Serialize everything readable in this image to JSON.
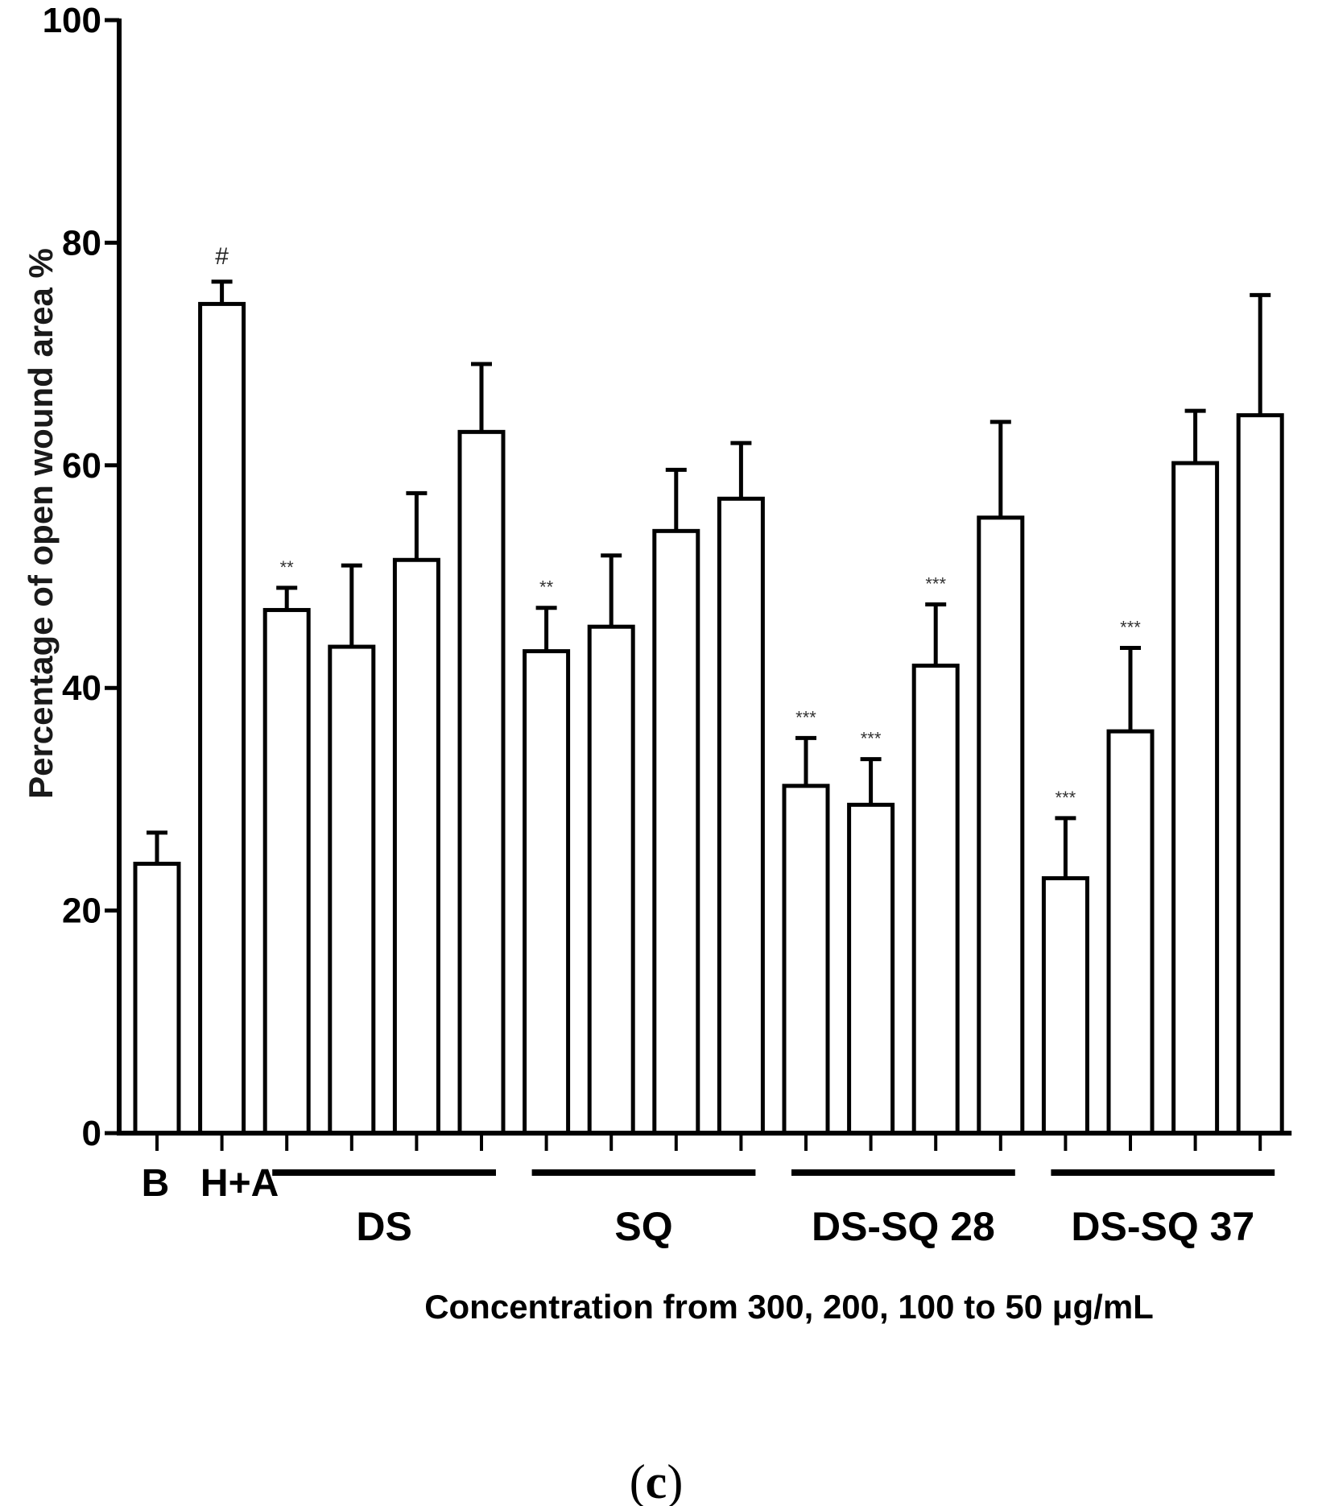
{
  "chart_data": {
    "type": "bar",
    "categories": [
      "B",
      "H+A",
      "DS-300",
      "DS-200",
      "DS-100",
      "DS-50",
      "SQ-300",
      "SQ-200",
      "SQ-100",
      "SQ-50",
      "DS-SQ 28-300",
      "DS-SQ 28-200",
      "DS-SQ 28-100",
      "DS-SQ 28-50",
      "DS-SQ 37-300",
      "DS-SQ 37-200",
      "DS-SQ 37-100",
      "DS-SQ 37-50"
    ],
    "values": [
      24.2,
      74.5,
      47.0,
      43.7,
      51.5,
      63.0,
      43.3,
      45.5,
      54.1,
      57.0,
      31.2,
      29.5,
      42.0,
      55.3,
      22.9,
      36.1,
      60.2,
      64.5
    ],
    "errors": [
      2.8,
      2.0,
      2.0,
      7.3,
      6.0,
      6.1,
      3.9,
      6.4,
      5.5,
      5.0,
      4.3,
      4.1,
      5.5,
      8.6,
      5.4,
      7.5,
      4.7,
      10.8
    ],
    "annotations": [
      "",
      "#",
      "**",
      "",
      "",
      "",
      "**",
      "",
      "",
      "",
      "***",
      "***",
      "***",
      "",
      "***",
      "***",
      "",
      ""
    ],
    "ylabel": "Percentage of open wound area %",
    "xlabel": "Concentration from 300, 200, 100 to 50 μg/mL",
    "ylim": [
      0,
      100
    ],
    "yticks": [
      "0",
      "20",
      "40",
      "60",
      "80",
      "100"
    ],
    "single_labels": [
      "B",
      "H+A"
    ],
    "groups": [
      {
        "label": "DS",
        "start": 2,
        "end": 5
      },
      {
        "label": "SQ",
        "start": 6,
        "end": 9
      },
      {
        "label": "DS-SQ 28",
        "start": 10,
        "end": 13
      },
      {
        "label": "DS-SQ 37",
        "start": 14,
        "end": 17
      }
    ],
    "grid": false,
    "bar_color": "#ffffff",
    "edge_color": "#000000"
  },
  "panel_label": "(c)"
}
